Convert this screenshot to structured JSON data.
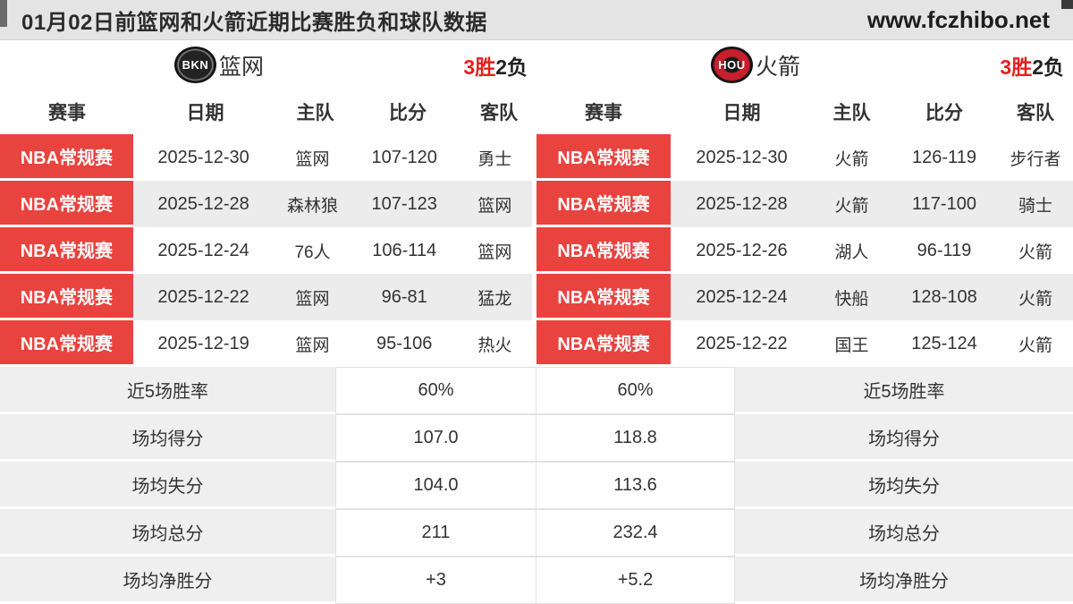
{
  "page": {
    "title": "01月02日前篮网和火箭近期比赛胜负和球队数据",
    "watermark": "www.fczhibo.net"
  },
  "table": {
    "columns": [
      "赛事",
      "日期",
      "主队",
      "比分",
      "客队"
    ]
  },
  "teams": [
    {
      "abbr": "BKN",
      "name": "篮网",
      "wins": "3胜",
      "losses": "2负",
      "matches": [
        {
          "league": "NBA常规赛",
          "date": "2025-12-30",
          "home": "篮网",
          "score": "107-120",
          "away": "勇士"
        },
        {
          "league": "NBA常规赛",
          "date": "2025-12-28",
          "home": "森林狼",
          "score": "107-123",
          "away": "篮网"
        },
        {
          "league": "NBA常规赛",
          "date": "2025-12-24",
          "home": "76人",
          "score": "106-114",
          "away": "篮网"
        },
        {
          "league": "NBA常规赛",
          "date": "2025-12-22",
          "home": "篮网",
          "score": "96-81",
          "away": "猛龙"
        },
        {
          "league": "NBA常规赛",
          "date": "2025-12-19",
          "home": "篮网",
          "score": "95-106",
          "away": "热火"
        }
      ],
      "stats": {
        "win_rate": "60%",
        "avg_points": "107.0",
        "avg_conceded": "104.0",
        "avg_total": "211",
        "avg_margin": "+3"
      }
    },
    {
      "abbr": "HOU",
      "name": "火箭",
      "wins": "3胜",
      "losses": "2负",
      "matches": [
        {
          "league": "NBA常规赛",
          "date": "2025-12-30",
          "home": "火箭",
          "score": "126-119",
          "away": "步行者"
        },
        {
          "league": "NBA常规赛",
          "date": "2025-12-28",
          "home": "火箭",
          "score": "117-100",
          "away": "骑士"
        },
        {
          "league": "NBA常规赛",
          "date": "2025-12-26",
          "home": "湖人",
          "score": "96-119",
          "away": "火箭"
        },
        {
          "league": "NBA常规赛",
          "date": "2025-12-24",
          "home": "快船",
          "score": "128-108",
          "away": "火箭"
        },
        {
          "league": "NBA常规赛",
          "date": "2025-12-22",
          "home": "国王",
          "score": "125-124",
          "away": "火箭"
        }
      ],
      "stats": {
        "win_rate": "60%",
        "avg_points": "118.8",
        "avg_conceded": "113.6",
        "avg_total": "232.4",
        "avg_margin": "+5.2"
      }
    }
  ],
  "stats_labels": {
    "win_rate": "近5场胜率",
    "avg_points": "场均得分",
    "avg_conceded": "场均失分",
    "avg_total": "场均总分",
    "avg_margin": "场均净胜分"
  },
  "colors": {
    "accent_red": "#e8433f",
    "record_red": "#e81e1e",
    "row_alt_gray": "#ececec",
    "label_gray": "#efefef",
    "titlebar_gray": "#e4e4e4"
  }
}
